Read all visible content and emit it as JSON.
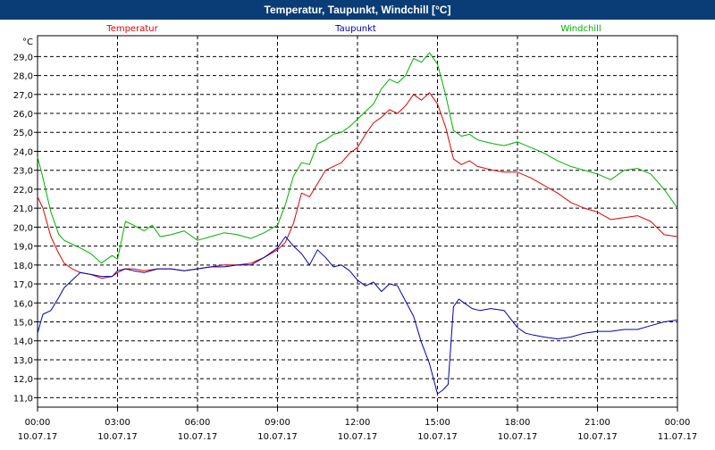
{
  "window": {
    "title": "Temperatur, Taupunkt, Windchill [°C]"
  },
  "chart_data": {
    "type": "line",
    "title": "Temperatur, Taupunkt, Windchill [°C]",
    "ylabel": "°C",
    "xlabel": "",
    "ylim": [
      10.5,
      30.1
    ],
    "y_ticks": [
      "11,0",
      "12,0",
      "13,0",
      "14,0",
      "15,0",
      "16,0",
      "17,0",
      "18,0",
      "19,0",
      "20,0",
      "21,0",
      "22,0",
      "23,0",
      "24,0",
      "25,0",
      "26,0",
      "27,0",
      "28,0",
      "29,0"
    ],
    "y_tick_values": [
      11,
      12,
      13,
      14,
      15,
      16,
      17,
      18,
      19,
      20,
      21,
      22,
      23,
      24,
      25,
      26,
      27,
      28,
      29
    ],
    "x_range_hours": [
      0,
      24
    ],
    "x_ticks": [
      {
        "time": "00:00",
        "date": "10.07.17",
        "h": 0
      },
      {
        "time": "03:00",
        "date": "10.07.17",
        "h": 3
      },
      {
        "time": "06:00",
        "date": "10.07.17",
        "h": 6
      },
      {
        "time": "09:00",
        "date": "10.07.17",
        "h": 9
      },
      {
        "time": "12:00",
        "date": "10.07.17",
        "h": 12
      },
      {
        "time": "15:00",
        "date": "10.07.17",
        "h": 15
      },
      {
        "time": "18:00",
        "date": "10.07.17",
        "h": 18
      },
      {
        "time": "21:00",
        "date": "10.07.17",
        "h": 21
      },
      {
        "time": "00:00",
        "date": "11.07.17",
        "h": 24
      }
    ],
    "grid": true,
    "legend": "top",
    "series": [
      {
        "name": "Temperatur",
        "color": "#e00000",
        "x": [
          0,
          0.2,
          0.5,
          0.8,
          1.0,
          1.3,
          1.6,
          2.0,
          2.4,
          2.8,
          3.0,
          3.3,
          3.6,
          4.0,
          4.5,
          5.0,
          5.5,
          6.0,
          6.5,
          7.0,
          7.5,
          8.0,
          8.5,
          9.0,
          9.3,
          9.6,
          9.9,
          10.2,
          10.5,
          10.8,
          11.1,
          11.4,
          11.7,
          12.0,
          12.3,
          12.6,
          12.9,
          13.2,
          13.5,
          13.8,
          14.1,
          14.4,
          14.7,
          15.0,
          15.3,
          15.6,
          15.9,
          16.2,
          16.5,
          16.8,
          17.1,
          17.5,
          18.0,
          18.5,
          19.0,
          19.5,
          20.0,
          20.5,
          21.0,
          21.5,
          22.0,
          22.5,
          23.0,
          23.5,
          24.0
        ],
        "y": [
          21.6,
          21.0,
          19.5,
          18.6,
          18.1,
          17.8,
          17.6,
          17.5,
          17.3,
          17.4,
          17.6,
          17.8,
          17.8,
          17.7,
          17.8,
          17.8,
          17.7,
          17.8,
          17.9,
          18.0,
          18.0,
          18.1,
          18.4,
          18.8,
          19.2,
          20.2,
          21.8,
          21.6,
          22.3,
          23.0,
          23.2,
          23.4,
          23.9,
          24.2,
          24.9,
          25.5,
          25.8,
          26.2,
          26.0,
          26.4,
          27.0,
          26.7,
          27.1,
          26.5,
          25.3,
          23.6,
          23.3,
          23.5,
          23.2,
          23.1,
          23.0,
          22.9,
          22.9,
          22.6,
          22.2,
          21.8,
          21.3,
          21.0,
          20.8,
          20.4,
          20.5,
          20.6,
          20.3,
          19.6,
          19.5
        ]
      },
      {
        "name": "Taupunkt",
        "color": "#0000b0",
        "x": [
          0,
          0.2,
          0.5,
          0.8,
          1.0,
          1.3,
          1.6,
          2.0,
          2.4,
          2.8,
          3.0,
          3.3,
          3.6,
          4.0,
          4.5,
          5.0,
          5.5,
          6.0,
          6.5,
          7.0,
          7.5,
          8.0,
          8.5,
          9.0,
          9.3,
          9.6,
          9.9,
          10.2,
          10.5,
          10.8,
          11.1,
          11.4,
          11.7,
          12.0,
          12.3,
          12.6,
          12.9,
          13.2,
          13.5,
          13.8,
          14.1,
          14.4,
          14.7,
          15.0,
          15.2,
          15.4,
          15.6,
          15.8,
          16.0,
          16.3,
          16.6,
          17.0,
          17.5,
          18.0,
          18.3,
          18.6,
          19.0,
          19.5,
          20.0,
          20.5,
          21.0,
          21.5,
          22.0,
          22.5,
          23.0,
          23.5,
          24.0
        ],
        "y": [
          14.4,
          15.4,
          15.6,
          16.3,
          16.8,
          17.2,
          17.6,
          17.5,
          17.4,
          17.4,
          17.7,
          17.8,
          17.7,
          17.6,
          17.8,
          17.8,
          17.7,
          17.8,
          17.9,
          17.9,
          18.0,
          18.0,
          18.4,
          18.9,
          19.5,
          19.0,
          18.6,
          18.0,
          18.8,
          18.4,
          17.9,
          18.0,
          17.7,
          17.2,
          16.9,
          17.1,
          16.6,
          17.0,
          16.9,
          16.1,
          15.3,
          13.9,
          12.8,
          11.2,
          11.4,
          11.7,
          15.8,
          16.2,
          16.0,
          15.7,
          15.6,
          15.7,
          15.6,
          14.7,
          14.4,
          14.3,
          14.2,
          14.1,
          14.2,
          14.4,
          14.5,
          14.5,
          14.6,
          14.6,
          14.8,
          15.0,
          15.1
        ]
      },
      {
        "name": "Windchill",
        "color": "#00b000",
        "x": [
          0,
          0.2,
          0.5,
          0.8,
          1.0,
          1.3,
          1.6,
          2.0,
          2.4,
          2.8,
          3.0,
          3.3,
          3.6,
          4.0,
          4.3,
          4.6,
          5.0,
          5.5,
          6.0,
          6.5,
          7.0,
          7.5,
          8.0,
          8.5,
          9.0,
          9.3,
          9.6,
          9.9,
          10.2,
          10.5,
          10.8,
          11.1,
          11.4,
          11.7,
          12.0,
          12.3,
          12.6,
          12.9,
          13.2,
          13.5,
          13.8,
          14.1,
          14.4,
          14.7,
          15.0,
          15.3,
          15.6,
          15.9,
          16.2,
          16.5,
          16.8,
          17.1,
          17.5,
          18.0,
          18.5,
          19.0,
          19.5,
          20.0,
          20.5,
          21.0,
          21.5,
          22.0,
          22.5,
          23.0,
          23.5,
          24.0
        ],
        "y": [
          23.7,
          22.6,
          20.8,
          19.6,
          19.3,
          19.1,
          18.9,
          18.6,
          18.1,
          18.5,
          18.3,
          20.3,
          20.1,
          19.8,
          20.1,
          19.5,
          19.6,
          19.8,
          19.3,
          19.5,
          19.7,
          19.6,
          19.4,
          19.7,
          20.1,
          21.2,
          22.7,
          23.4,
          23.3,
          24.4,
          24.6,
          24.9,
          25.0,
          25.3,
          25.7,
          26.1,
          26.5,
          27.3,
          27.8,
          27.6,
          28.0,
          28.9,
          28.7,
          29.2,
          28.6,
          27.0,
          25.1,
          24.8,
          24.9,
          24.6,
          24.5,
          24.4,
          24.3,
          24.5,
          24.2,
          23.9,
          23.5,
          23.2,
          23.0,
          22.8,
          22.5,
          23.0,
          23.1,
          22.8,
          22.0,
          21.0
        ]
      }
    ]
  }
}
